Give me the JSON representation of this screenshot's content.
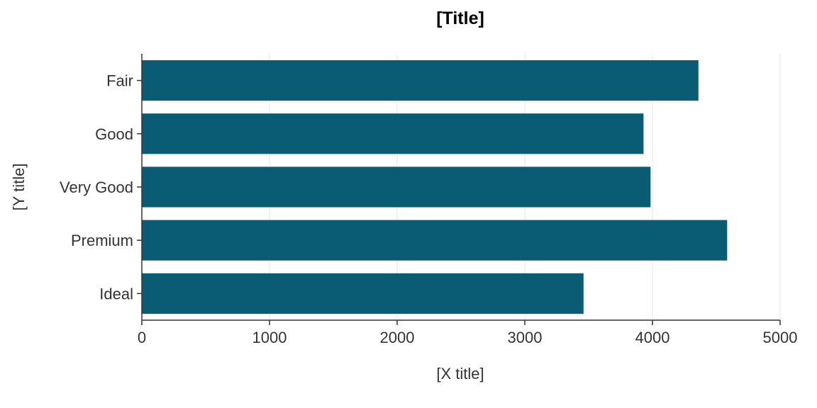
{
  "chart_data": {
    "type": "bar",
    "orientation": "horizontal",
    "title": "[Title]",
    "xlabel": "[X title]",
    "ylabel": "[Y title]",
    "categories": [
      "Fair",
      "Good",
      "Very Good",
      "Premium",
      "Ideal"
    ],
    "values": [
      4360,
      3930,
      3985,
      4585,
      3460
    ],
    "xlim": [
      0,
      5000
    ],
    "xticks": [
      0,
      1000,
      2000,
      3000,
      4000,
      5000
    ],
    "grid": "vertical",
    "bar_color": "#0a5c75",
    "legend": "none"
  }
}
